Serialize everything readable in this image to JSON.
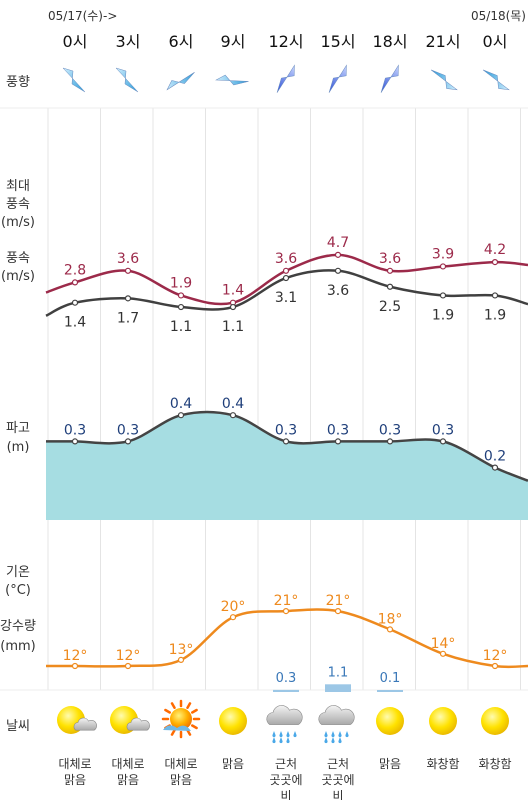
{
  "dates": {
    "start": "05/17(수)->",
    "end": "05/18(목)"
  },
  "times": [
    "0시",
    "3시",
    "6시",
    "9시",
    "12시",
    "15시",
    "18시",
    "21시",
    "0시"
  ],
  "labels": {
    "wind_dir": "풍향",
    "max_wind": [
      "최대",
      "풍속",
      "(m/s)"
    ],
    "wind": [
      "풍속",
      "(m/s)"
    ],
    "wave": [
      "파고",
      "(m)"
    ],
    "temp": [
      "기온",
      "(°C)"
    ],
    "precip": [
      "강수량",
      "(mm)"
    ],
    "weather": "날씨"
  },
  "wind_direction_icons": [
    "arrow-sw-icon",
    "arrow-sw-icon",
    "arrow-se-icon",
    "arrow-s-icon",
    "arrow-w-icon",
    "arrow-w-icon",
    "arrow-w-icon",
    "arrow-ne-icon",
    "arrow-ne-icon"
  ],
  "colors": {
    "max_wind": "#9c2a4a",
    "wind": "#404040",
    "wave_fill": "#a6dde2",
    "wave_line": "#444444",
    "wave_label": "#1f3f7a",
    "temp": "#ee8a1e",
    "precip": "#9cc7e6",
    "precip_label": "#3a78b8",
    "grid": "#e4e4e4"
  },
  "chart_data": {
    "type": "line",
    "x": [
      "0시",
      "3시",
      "6시",
      "9시",
      "12시",
      "15시",
      "18시",
      "21시",
      "0시"
    ],
    "series": [
      {
        "name": "최대 풍속",
        "values": [
          2.8,
          3.6,
          1.9,
          1.4,
          3.6,
          4.7,
          3.6,
          3.9,
          4.2
        ],
        "labels": [
          "2.8",
          "3.6",
          "1.9",
          "1.4",
          "3.6",
          "4.7",
          "3.6",
          "3.9",
          "4.2"
        ]
      },
      {
        "name": "풍속",
        "values": [
          1.4,
          1.7,
          1.1,
          1.1,
          3.1,
          3.6,
          2.5,
          1.9,
          1.9
        ],
        "labels": [
          "1.4",
          "1.7",
          "1.1",
          "1.1",
          "3.1",
          "3.6",
          "2.5",
          "1.9",
          "1.9"
        ]
      },
      {
        "name": "파고",
        "values": [
          0.3,
          0.3,
          0.4,
          0.4,
          0.3,
          0.3,
          0.3,
          0.3,
          0.2
        ],
        "labels": [
          "0.3",
          "0.3",
          "0.4",
          "0.4",
          "0.3",
          "0.3",
          "0.3",
          "0.3",
          "0.2"
        ]
      },
      {
        "name": "기온",
        "values": [
          12,
          12,
          13,
          20,
          21,
          21,
          18,
          14,
          12
        ],
        "labels": [
          "12°",
          "12°",
          "13°",
          "20°",
          "21°",
          "21°",
          "18°",
          "14°",
          "12°"
        ]
      },
      {
        "name": "강수량",
        "values": [
          0,
          0,
          0,
          0,
          0.3,
          1.1,
          0.1,
          0,
          0
        ],
        "labels": [
          "",
          "",
          "",
          "",
          "0.3",
          "1.1",
          "0.1",
          "",
          ""
        ]
      }
    ]
  },
  "weather": [
    {
      "text": [
        "대체로",
        "맑음"
      ],
      "icon": "sun-cloud-icon"
    },
    {
      "text": [
        "대체로",
        "맑음"
      ],
      "icon": "sun-cloud-icon"
    },
    {
      "text": [
        "대체로",
        "맑음"
      ],
      "icon": "sun-cloud-icon"
    },
    {
      "text": [
        "맑음"
      ],
      "icon": "sun-icon"
    },
    {
      "text": [
        "근처",
        "곳곳에",
        "비"
      ],
      "icon": "rain-cloud-icon"
    },
    {
      "text": [
        "근처",
        "곳곳에",
        "비"
      ],
      "icon": "rain-cloud-icon"
    },
    {
      "text": [
        "맑음"
      ],
      "icon": "sun-icon"
    },
    {
      "text": [
        "화창함"
      ],
      "icon": "sun-icon"
    },
    {
      "text": [
        "화창함"
      ],
      "icon": "sun-icon"
    }
  ]
}
